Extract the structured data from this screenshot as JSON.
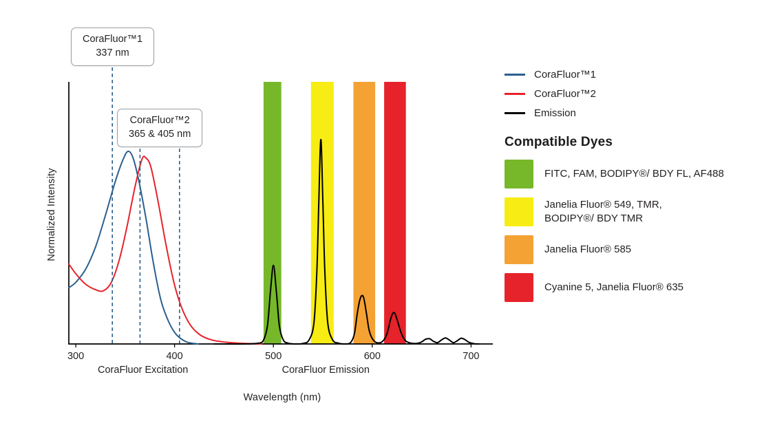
{
  "accent_colors": {
    "blue": "#2A5F8F",
    "red": "#E6232A",
    "black": "#000000",
    "green": "#76B82A",
    "yellow": "#F7EC13",
    "orange": "#F4A233"
  },
  "chart_data": {
    "type": "line",
    "xlabel": "Wavelength (nm)",
    "ylabel": "Normalized Intensity",
    "xlim": [
      293,
      722
    ],
    "ylim": [
      0,
      1
    ],
    "x_ticks": [
      300,
      400,
      500,
      600,
      700
    ],
    "grid": false,
    "legend_position": "right",
    "axis_region_labels": [
      {
        "label": "CoraFluor Excitation",
        "center_nm": 368
      },
      {
        "label": "CoraFluor Emission",
        "center_nm": 553
      }
    ],
    "filter_bands": [
      {
        "name": "FITC, FAM, BODIPY®/ BDY FL, AF488",
        "color": "#76B82A",
        "from_nm": 490,
        "to_nm": 508
      },
      {
        "name": "Janelia Fluor® 549, TMR, BODIPY®/ BDY TMR",
        "color": "#F7EC13",
        "from_nm": 538,
        "to_nm": 561
      },
      {
        "name": "Janelia Fluor® 585",
        "color": "#F4A233",
        "from_nm": 581,
        "to_nm": 603
      },
      {
        "name": "Cyanine 5, Janelia Fluor® 635",
        "color": "#E6232A",
        "from_nm": 612,
        "to_nm": 634
      }
    ],
    "annotations": [
      {
        "line1": "CoraFluor™1",
        "line2": "337 nm",
        "lines_nm": [
          337
        ]
      },
      {
        "line1": "CoraFluor™2",
        "line2": "365 & 405 nm",
        "lines_nm": [
          365,
          405
        ]
      }
    ],
    "series": [
      {
        "name": "CoraFluor™1",
        "color": "#2A5F8F",
        "points": [
          [
            293,
            0.215
          ],
          [
            300,
            0.235
          ],
          [
            310,
            0.285
          ],
          [
            320,
            0.37
          ],
          [
            330,
            0.49
          ],
          [
            340,
            0.62
          ],
          [
            348,
            0.705
          ],
          [
            353,
            0.735
          ],
          [
            358,
            0.71
          ],
          [
            364,
            0.62
          ],
          [
            371,
            0.48
          ],
          [
            378,
            0.32
          ],
          [
            386,
            0.17
          ],
          [
            394,
            0.085
          ],
          [
            402,
            0.035
          ],
          [
            412,
            0.008
          ],
          [
            424,
            0.0
          ]
        ]
      },
      {
        "name": "CoraFluor™2",
        "color": "#E6232A",
        "points": [
          [
            293,
            0.305
          ],
          [
            300,
            0.268
          ],
          [
            310,
            0.228
          ],
          [
            320,
            0.207
          ],
          [
            328,
            0.203
          ],
          [
            336,
            0.235
          ],
          [
            344,
            0.32
          ],
          [
            352,
            0.45
          ],
          [
            360,
            0.6
          ],
          [
            367,
            0.705
          ],
          [
            371,
            0.71
          ],
          [
            376,
            0.675
          ],
          [
            383,
            0.55
          ],
          [
            391,
            0.385
          ],
          [
            399,
            0.24
          ],
          [
            407,
            0.14
          ],
          [
            416,
            0.072
          ],
          [
            426,
            0.034
          ],
          [
            438,
            0.015
          ],
          [
            454,
            0.006
          ],
          [
            472,
            0.002
          ],
          [
            488,
            0.0
          ]
        ]
      },
      {
        "name": "Emission",
        "color": "#000000",
        "points": [
          [
            440,
            0
          ],
          [
            470,
            0
          ],
          [
            485,
            0.003
          ],
          [
            490,
            0.015
          ],
          [
            494,
            0.07
          ],
          [
            497,
            0.2
          ],
          [
            500,
            0.3
          ],
          [
            503,
            0.2
          ],
          [
            506,
            0.07
          ],
          [
            510,
            0.015
          ],
          [
            515,
            0.003
          ],
          [
            522,
            0
          ],
          [
            530,
            0.002
          ],
          [
            536,
            0.015
          ],
          [
            541,
            0.08
          ],
          [
            544,
            0.28
          ],
          [
            546,
            0.55
          ],
          [
            548,
            0.78
          ],
          [
            550,
            0.55
          ],
          [
            552,
            0.28
          ],
          [
            555,
            0.08
          ],
          [
            560,
            0.015
          ],
          [
            566,
            0.003
          ],
          [
            572,
            0
          ],
          [
            578,
            0.005
          ],
          [
            582,
            0.04
          ],
          [
            585,
            0.12
          ],
          [
            588,
            0.175
          ],
          [
            591,
            0.18
          ],
          [
            594,
            0.12
          ],
          [
            597,
            0.05
          ],
          [
            601,
            0.015
          ],
          [
            606,
            0.004
          ],
          [
            611,
            0.012
          ],
          [
            615,
            0.04
          ],
          [
            619,
            0.1
          ],
          [
            622,
            0.12
          ],
          [
            625,
            0.095
          ],
          [
            629,
            0.045
          ],
          [
            633,
            0.015
          ],
          [
            638,
            0.004
          ],
          [
            645,
            0.002
          ],
          [
            650,
            0.008
          ],
          [
            654,
            0.018
          ],
          [
            658,
            0.02
          ],
          [
            662,
            0.01
          ],
          [
            666,
            0.005
          ],
          [
            670,
            0.015
          ],
          [
            674,
            0.023
          ],
          [
            678,
            0.015
          ],
          [
            682,
            0.005
          ],
          [
            686,
            0.012
          ],
          [
            690,
            0.022
          ],
          [
            694,
            0.016
          ],
          [
            698,
            0.006
          ],
          [
            703,
            0.001
          ],
          [
            708,
            0
          ]
        ]
      }
    ]
  },
  "legend": {
    "items": [
      {
        "label": "CoraFluor™1",
        "color": "#2A5F8F"
      },
      {
        "label": "CoraFluor™2",
        "color": "#E6232A"
      },
      {
        "label": "Emission",
        "color": "#000000"
      }
    ]
  },
  "compatible_dyes": {
    "heading": "Compatible Dyes",
    "items": [
      {
        "label": "FITC, FAM, BODIPY®/ BDY FL, AF488",
        "color": "#76B82A"
      },
      {
        "label": "Janelia Fluor® 549, TMR,\nBODIPY®/ BDY TMR",
        "color": "#F7EC13"
      },
      {
        "label": "Janelia Fluor® 585",
        "color": "#F4A233"
      },
      {
        "label": "Cyanine 5, Janelia Fluor® 635",
        "color": "#E6232A"
      }
    ]
  }
}
